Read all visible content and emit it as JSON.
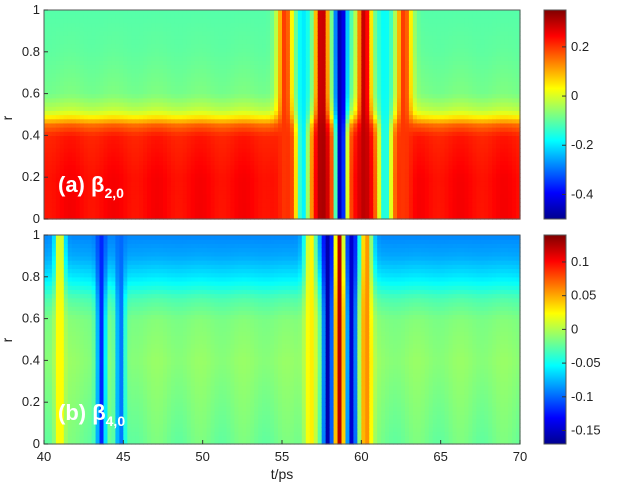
{
  "chart_data": [
    {
      "type": "heatmap",
      "panel_label": "(a) β",
      "panel_label_sub": "2,0",
      "xlabel": "",
      "ylabel": "r",
      "xlim": [
        40,
        70
      ],
      "ylim": [
        0,
        1
      ],
      "yticks": [
        "0",
        "0.2",
        "0.4",
        "0.6",
        "0.8",
        "1"
      ],
      "colorbar": {
        "range": [
          -0.5,
          0.35
        ],
        "ticks": [
          0.2,
          0,
          -0.2,
          -0.4
        ],
        "tick_labels": [
          "0.2",
          "0",
          "-0.2",
          "-0.4"
        ]
      },
      "field": {
        "base_profile": {
          "r": [
            0,
            0.2,
            0.4,
            0.45,
            0.48,
            0.52,
            0.6,
            0.8,
            1.0
          ],
          "value": [
            0.24,
            0.24,
            0.22,
            0.16,
            0.07,
            -0.02,
            -0.08,
            -0.1,
            -0.11
          ]
        },
        "events": [
          {
            "t": 58.7,
            "value": -0.48,
            "width": 0.4
          },
          {
            "t": 57.5,
            "value": 0.32,
            "width": 0.45
          },
          {
            "t": 60.2,
            "value": 0.3,
            "width": 0.45
          },
          {
            "t": 56.3,
            "value": -0.2,
            "width": 0.5
          },
          {
            "t": 61.5,
            "value": -0.18,
            "width": 0.5
          },
          {
            "t": 55.2,
            "value": 0.2,
            "width": 0.5
          },
          {
            "t": 62.7,
            "value": 0.2,
            "width": 0.5
          }
        ]
      }
    },
    {
      "type": "heatmap",
      "panel_label": "(b) β",
      "panel_label_sub": "4,0",
      "xlabel": "t/ps",
      "ylabel": "r",
      "xlim": [
        40,
        70
      ],
      "ylim": [
        0,
        1
      ],
      "xticks": [
        "40",
        "45",
        "50",
        "55",
        "60",
        "65",
        "70"
      ],
      "yticks": [
        "0",
        "0.2",
        "0.4",
        "0.6",
        "0.8",
        "1"
      ],
      "colorbar": {
        "range": [
          -0.17,
          0.14
        ],
        "ticks": [
          0.1,
          0.05,
          0,
          -0.05,
          -0.1,
          -0.15
        ],
        "tick_labels": [
          "0.1",
          "0.05",
          "0",
          "-0.05",
          "-0.1",
          "-0.15"
        ]
      },
      "field": {
        "base_profile": {
          "r": [
            0,
            0.2,
            0.4,
            0.6,
            0.7,
            0.8,
            0.9,
            1.0
          ],
          "value": [
            -0.02,
            -0.015,
            -0.01,
            -0.015,
            -0.03,
            -0.06,
            -0.08,
            -0.09
          ]
        },
        "events": [
          {
            "t": 58.6,
            "value": 0.13,
            "width": 0.35
          },
          {
            "t": 57.9,
            "value": -0.16,
            "width": 0.35
          },
          {
            "t": 59.4,
            "value": -0.15,
            "width": 0.35
          },
          {
            "t": 60.3,
            "value": 0.06,
            "width": 0.4
          },
          {
            "t": 56.8,
            "value": 0.03,
            "width": 0.4
          },
          {
            "t": 43.6,
            "value": -0.12,
            "width": 0.3
          },
          {
            "t": 44.8,
            "value": -0.1,
            "width": 0.3
          },
          {
            "t": 41.0,
            "value": 0.03,
            "width": 0.3
          }
        ]
      }
    }
  ]
}
